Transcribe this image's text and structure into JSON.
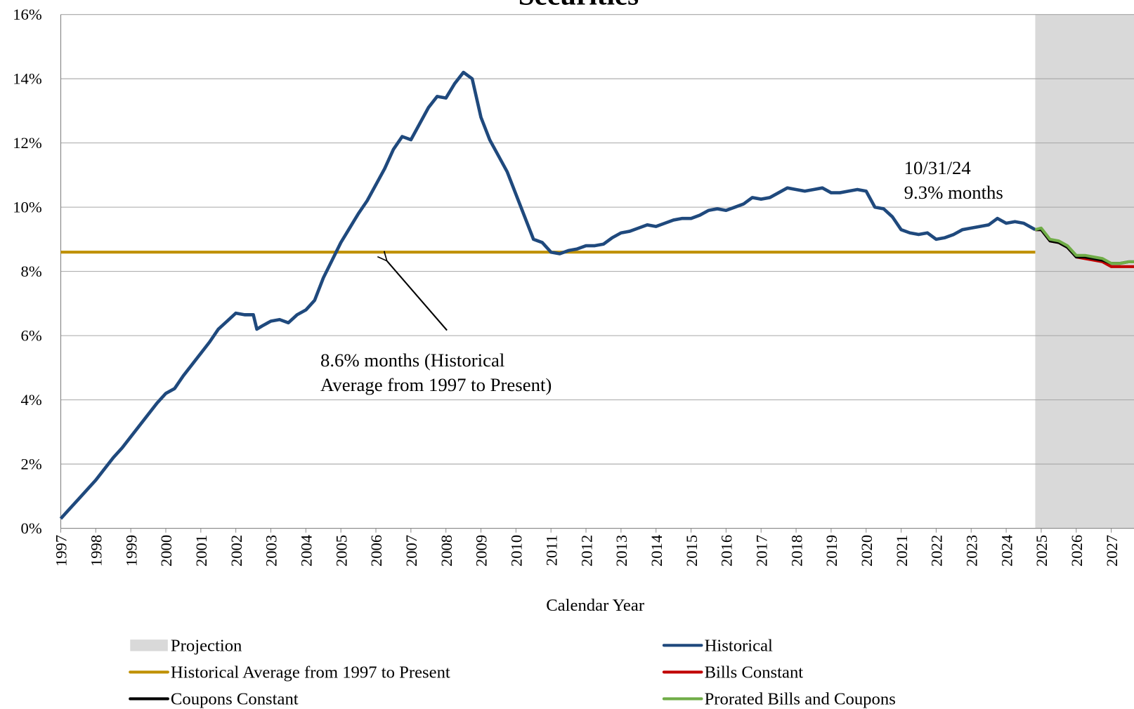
{
  "chart_data": {
    "type": "line",
    "title": "Securities",
    "x_label": "Calendar Year",
    "xlim": [
      1997,
      2027.65
    ],
    "xticks": [
      1997,
      1998,
      1999,
      2000,
      2001,
      2002,
      2003,
      2004,
      2005,
      2006,
      2007,
      2008,
      2009,
      2010,
      2011,
      2012,
      2013,
      2014,
      2015,
      2016,
      2017,
      2018,
      2019,
      2020,
      2021,
      2022,
      2023,
      2024,
      2025,
      2026,
      2027
    ],
    "ylim": [
      0,
      16
    ],
    "yticks": [
      {
        "value": 0,
        "label": "0%"
      },
      {
        "value": 2,
        "label": "2%"
      },
      {
        "value": 4,
        "label": "4%"
      },
      {
        "value": 6,
        "label": "6%"
      },
      {
        "value": 8,
        "label": "8%"
      },
      {
        "value": 10,
        "label": "10%"
      },
      {
        "value": 12,
        "label": "12%"
      },
      {
        "value": 14,
        "label": "14%"
      },
      {
        "value": 16,
        "label": "16%"
      }
    ],
    "grid": true,
    "projection": {
      "name": "Projection",
      "color": "#d9d9d9",
      "x_range": [
        2024.83,
        2027.65
      ]
    },
    "series": [
      {
        "name": "Historical",
        "color": "#1f497d",
        "x": [
          1997,
          1997.25,
          1997.5,
          1997.75,
          1998,
          1998.25,
          1998.5,
          1998.75,
          1999,
          1999.25,
          1999.5,
          1999.75,
          2000,
          2000.25,
          2000.5,
          2000.75,
          2001,
          2001.25,
          2001.5,
          2001.75,
          2002,
          2002.25,
          2002.5,
          2002.6,
          2002.75,
          2003,
          2003.25,
          2003.5,
          2003.75,
          2004,
          2004.25,
          2004.5,
          2004.75,
          2005,
          2005.25,
          2005.5,
          2005.75,
          2006,
          2006.25,
          2006.5,
          2006.75,
          2007,
          2007.25,
          2007.5,
          2007.75,
          2008,
          2008.25,
          2008.5,
          2008.75,
          2009,
          2009.25,
          2009.5,
          2009.75,
          2010,
          2010.25,
          2010.5,
          2010.75,
          2011,
          2011.25,
          2011.5,
          2011.75,
          2012,
          2012.25,
          2012.5,
          2012.75,
          2013,
          2013.25,
          2013.5,
          2013.75,
          2014,
          2014.25,
          2014.5,
          2014.75,
          2015,
          2015.25,
          2015.5,
          2015.75,
          2016,
          2016.25,
          2016.5,
          2016.75,
          2017,
          2017.25,
          2017.5,
          2017.75,
          2018,
          2018.25,
          2018.5,
          2018.75,
          2019,
          2019.25,
          2019.5,
          2019.75,
          2020,
          2020.25,
          2020.5,
          2020.75,
          2021,
          2021.25,
          2021.5,
          2021.75,
          2022,
          2022.25,
          2022.5,
          2022.75,
          2023,
          2023.25,
          2023.5,
          2023.75,
          2024,
          2024.25,
          2024.5,
          2024.83
        ],
        "values": [
          0.3,
          0.6,
          0.9,
          1.2,
          1.5,
          1.85,
          2.2,
          2.5,
          2.85,
          3.2,
          3.55,
          3.9,
          4.2,
          4.35,
          4.75,
          5.1,
          5.45,
          5.8,
          6.2,
          6.45,
          6.7,
          6.65,
          6.65,
          6.2,
          6.3,
          6.45,
          6.5,
          6.4,
          6.65,
          6.8,
          7.1,
          7.8,
          8.35,
          8.9,
          9.35,
          9.8,
          10.2,
          10.7,
          11.2,
          11.8,
          12.2,
          12.1,
          12.6,
          13.1,
          13.45,
          13.4,
          13.85,
          14.2,
          14.0,
          12.8,
          12.1,
          11.6,
          11.1,
          10.4,
          9.7,
          9.0,
          8.9,
          8.6,
          8.55,
          8.65,
          8.7,
          8.8,
          8.8,
          8.85,
          9.05,
          9.2,
          9.25,
          9.35,
          9.45,
          9.4,
          9.5,
          9.6,
          9.65,
          9.65,
          9.75,
          9.9,
          9.95,
          9.9,
          10.0,
          10.1,
          10.3,
          10.25,
          10.3,
          10.45,
          10.6,
          10.55,
          10.5,
          10.55,
          10.6,
          10.45,
          10.45,
          10.5,
          10.55,
          10.5,
          10.0,
          9.95,
          9.7,
          9.3,
          9.2,
          9.15,
          9.2,
          9.0,
          9.05,
          9.15,
          9.3,
          9.35,
          9.4,
          9.45,
          9.65,
          9.5,
          9.55,
          9.5,
          9.3
        ]
      },
      {
        "name": "Historical Average from 1997 to Present",
        "color": "#bf9000",
        "x": [
          1997,
          2024.83
        ],
        "values": [
          8.6,
          8.6
        ]
      },
      {
        "name": "Bills Constant",
        "color": "#c00000",
        "x": [
          2024.83,
          2025,
          2025.25,
          2025.5,
          2025.75,
          2026,
          2026.25,
          2026.5,
          2026.75,
          2027,
          2027.25,
          2027.5,
          2027.65
        ],
        "values": [
          9.3,
          9.3,
          8.95,
          8.9,
          8.75,
          8.45,
          8.4,
          8.35,
          8.3,
          8.15,
          8.15,
          8.15,
          8.15
        ]
      },
      {
        "name": "Coupons Constant",
        "color": "#000000",
        "x": [
          2024.83,
          2025,
          2025.25,
          2025.5,
          2025.75,
          2026,
          2026.25,
          2026.5,
          2026.75,
          2027,
          2027.25,
          2027.5,
          2027.65
        ],
        "values": [
          9.3,
          9.3,
          8.95,
          8.9,
          8.75,
          8.45,
          8.45,
          8.4,
          8.35,
          8.25,
          8.25,
          8.3,
          8.3
        ]
      },
      {
        "name": "Prorated Bills and Coupons",
        "color": "#70ad47",
        "x": [
          2024.83,
          2025,
          2025.25,
          2025.5,
          2025.75,
          2026,
          2026.25,
          2026.5,
          2026.75,
          2027,
          2027.25,
          2027.5,
          2027.65
        ],
        "values": [
          9.3,
          9.35,
          9.0,
          8.95,
          8.8,
          8.5,
          8.5,
          8.45,
          8.4,
          8.25,
          8.25,
          8.3,
          8.3
        ]
      }
    ],
    "annotations": [
      {
        "lines": [
          "10/31/24",
          "9.3% months"
        ]
      },
      {
        "lines": [
          "8.6% months (Historical",
          "Average from 1997 to Present)"
        ]
      }
    ]
  }
}
